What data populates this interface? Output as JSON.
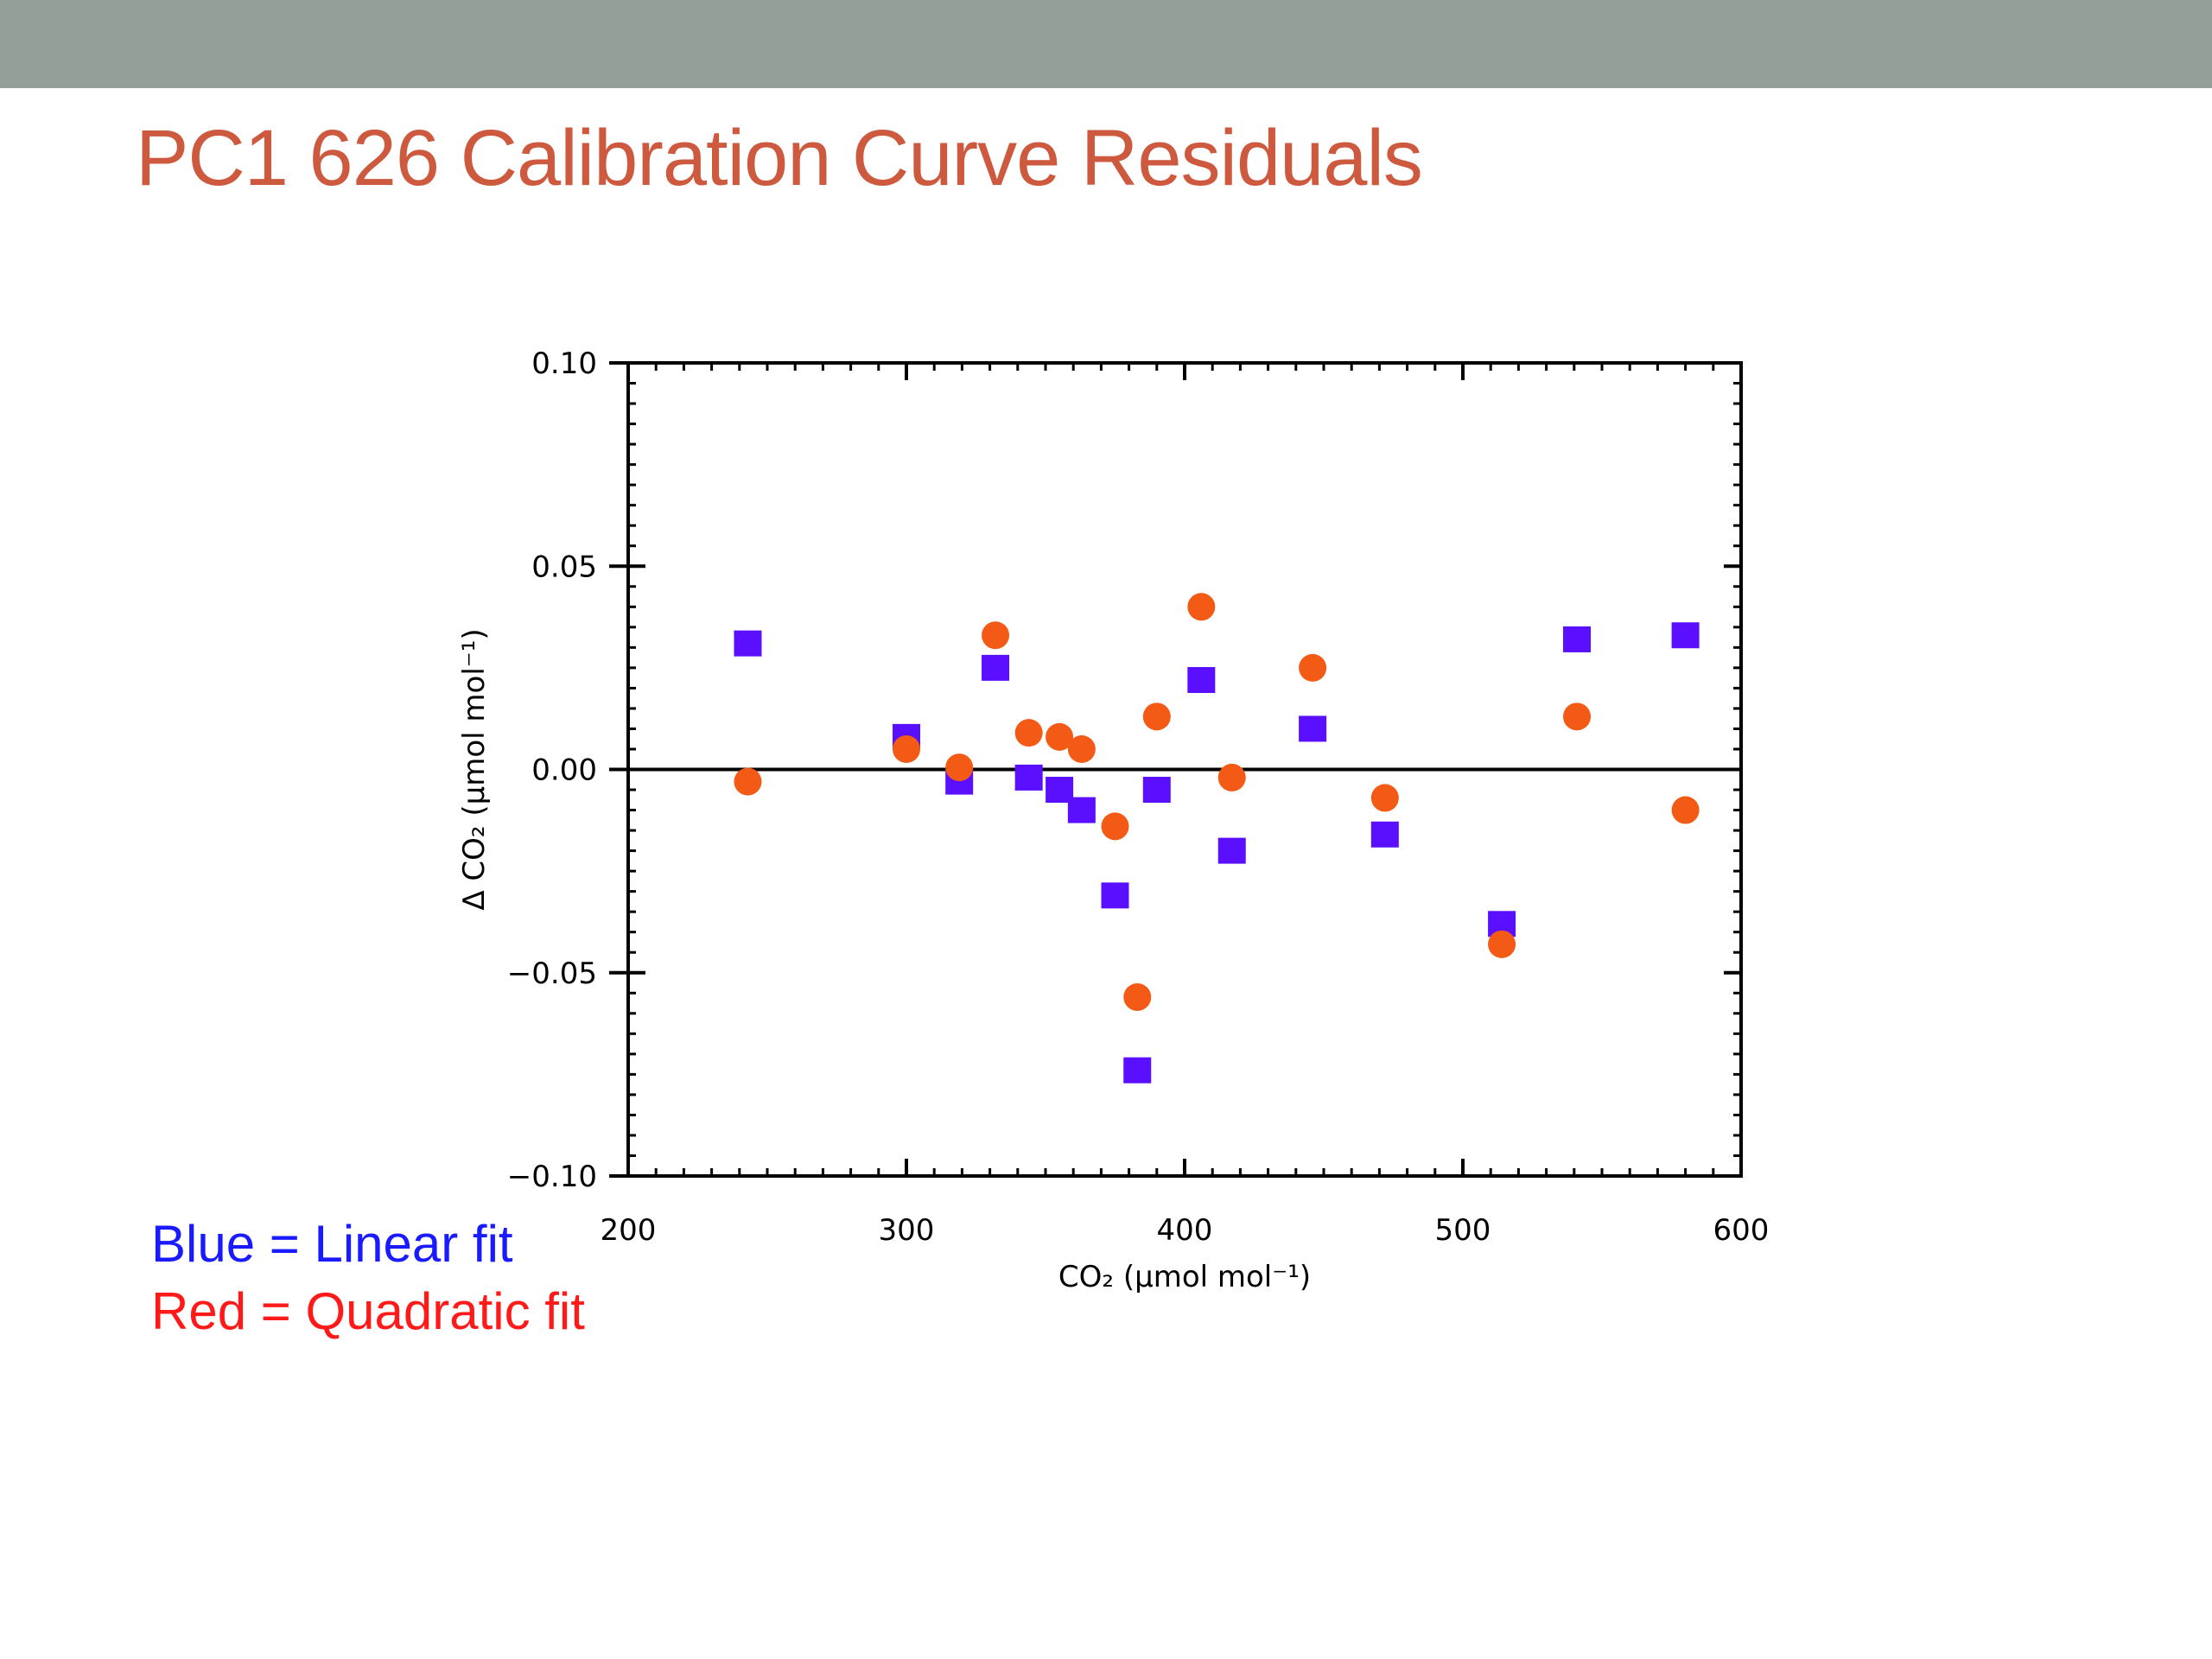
{
  "slide": {
    "title": "PC1 626 Calibration Curve Residuals",
    "topbar_color": "#939f98",
    "title_color": "#cd5a3f"
  },
  "legend_note": {
    "blue_text": "Blue = Linear fit",
    "blue_color": "#1a1aff",
    "red_text": "Red = Quadratic fit",
    "red_color": "#ff1a1a"
  },
  "chart_data": {
    "type": "scatter",
    "xlabel": "CO₂ (μmol mol⁻¹)",
    "ylabel": "Δ CO₂ (μmol mol⁻¹)",
    "xlim": [
      200,
      600
    ],
    "ylim": [
      -0.1,
      0.1
    ],
    "x_ticks": [
      200,
      300,
      400,
      500,
      600
    ],
    "x_tick_labels": [
      "200",
      "300",
      "400",
      "500",
      "600"
    ],
    "y_ticks": [
      0.1,
      0.05,
      0.0,
      -0.05,
      -0.1
    ],
    "y_tick_labels": [
      "0.10",
      "0.05",
      "0.00",
      "−0.05",
      "−0.10"
    ],
    "zero_line": true,
    "grid": false,
    "series": [
      {
        "marker": "square",
        "color": "#5a10ff",
        "points": [
          [
            243,
            0.031
          ],
          [
            300,
            0.008
          ],
          [
            319,
            -0.003
          ],
          [
            332,
            0.025
          ],
          [
            344,
            -0.002
          ],
          [
            355,
            -0.005
          ],
          [
            363,
            -0.01
          ],
          [
            375,
            -0.031
          ],
          [
            383,
            -0.074
          ],
          [
            390,
            -0.005
          ],
          [
            406,
            0.022
          ],
          [
            417,
            -0.02
          ],
          [
            446,
            0.01
          ],
          [
            472,
            -0.016
          ],
          [
            514,
            -0.038
          ],
          [
            541,
            0.032
          ],
          [
            580,
            0.033
          ]
        ]
      },
      {
        "marker": "circle",
        "color": "#f25a16",
        "points": [
          [
            243,
            -0.003
          ],
          [
            300,
            0.005
          ],
          [
            319,
            0.0005
          ],
          [
            332,
            0.033
          ],
          [
            344,
            0.009
          ],
          [
            355,
            0.008
          ],
          [
            363,
            0.005
          ],
          [
            375,
            -0.014
          ],
          [
            383,
            -0.056
          ],
          [
            390,
            0.013
          ],
          [
            406,
            0.04
          ],
          [
            417,
            -0.002
          ],
          [
            446,
            0.025
          ],
          [
            472,
            -0.007
          ],
          [
            514,
            -0.043
          ],
          [
            541,
            0.013
          ],
          [
            580,
            -0.01
          ]
        ]
      }
    ]
  }
}
